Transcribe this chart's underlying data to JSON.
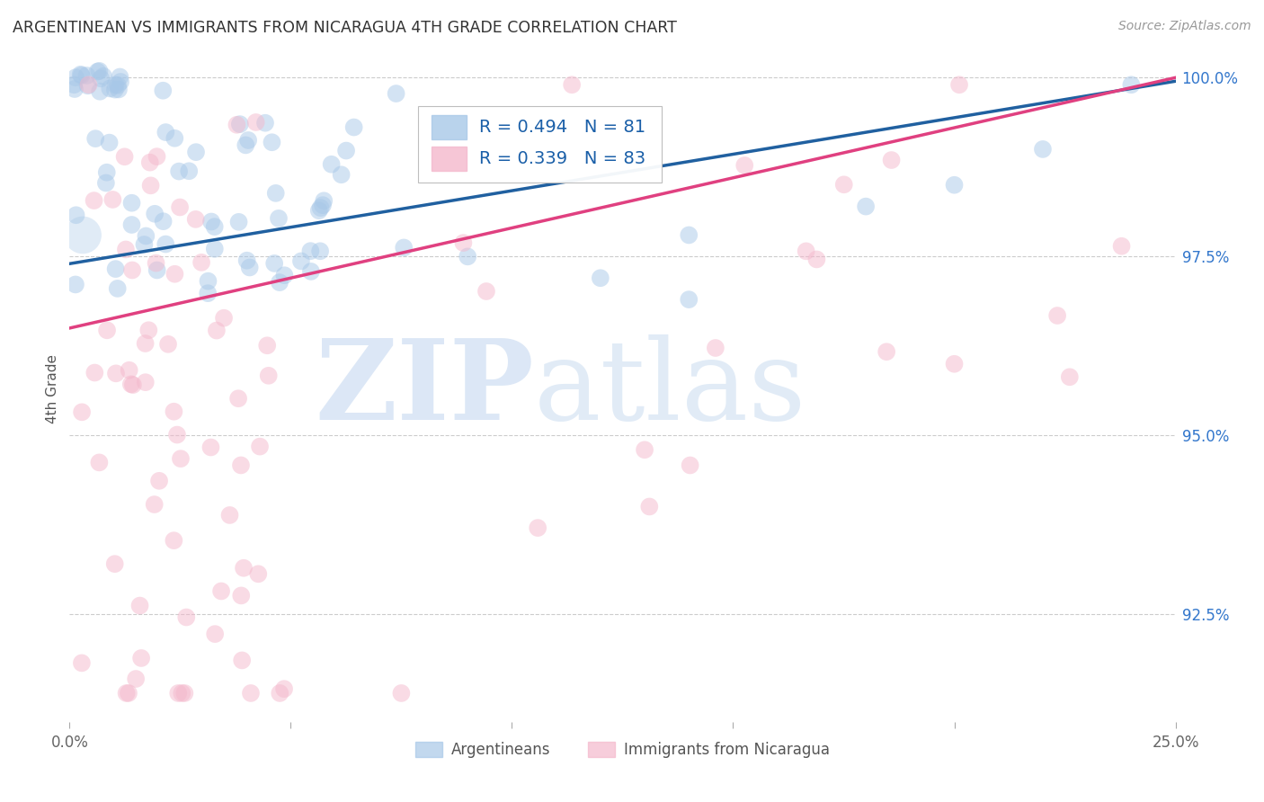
{
  "title": "ARGENTINEAN VS IMMIGRANTS FROM NICARAGUA 4TH GRADE CORRELATION CHART",
  "source": "Source: ZipAtlas.com",
  "ylabel": "4th Grade",
  "xlim": [
    0.0,
    0.25
  ],
  "ylim": [
    0.91,
    1.003
  ],
  "yticks": [
    0.925,
    0.95,
    0.975,
    1.0
  ],
  "yticklabels": [
    "92.5%",
    "95.0%",
    "97.5%",
    "100.0%"
  ],
  "blue_R": 0.494,
  "blue_N": 81,
  "pink_R": 0.339,
  "pink_N": 83,
  "blue_color": "#a8c8e8",
  "pink_color": "#f4b8cc",
  "blue_line_color": "#2060a0",
  "pink_line_color": "#e04080",
  "legend_blue_label": "Argentineans",
  "legend_pink_label": "Immigrants from Nicaragua",
  "blue_line_x0": 0.0,
  "blue_line_y0": 0.974,
  "blue_line_x1": 0.25,
  "blue_line_y1": 0.9995,
  "pink_line_x0": 0.0,
  "pink_line_y0": 0.965,
  "pink_line_x1": 0.25,
  "pink_line_y1": 1.0
}
